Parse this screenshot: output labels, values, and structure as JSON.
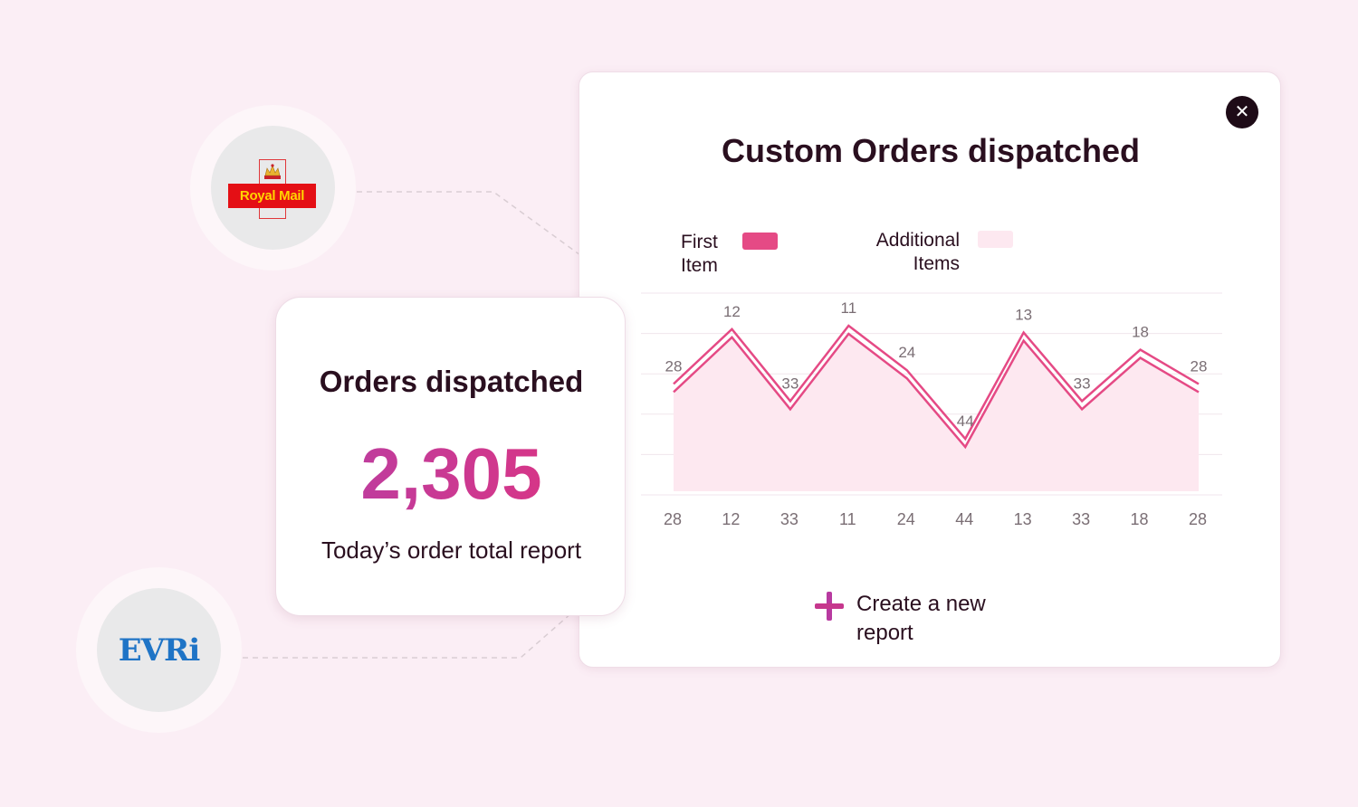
{
  "colors": {
    "background": "#fbeef5",
    "accent_first": "#e54a85",
    "accent_additional": "#fde8f0",
    "gradient_start": "#b53fa6",
    "gradient_end": "#e0337e",
    "dark": "#1e0b17"
  },
  "carriers": [
    {
      "name": "Royal Mail",
      "logo_text": "Royal Mail"
    },
    {
      "name": "EVRi",
      "logo_text": "EVRi"
    }
  ],
  "summary": {
    "title": "Orders dispatched",
    "value": "2,305",
    "caption": "Today’s order total report"
  },
  "report": {
    "title": "Custom Orders dispatched",
    "close_icon": "close-icon",
    "create_label": "Create a new report",
    "create_icon": "plus-icon"
  },
  "chart_data": {
    "type": "area",
    "title": "Custom Orders dispatched",
    "categories": [
      "28",
      "12",
      "33",
      "11",
      "24",
      "44",
      "13",
      "33",
      "18",
      "28"
    ],
    "point_labels": [
      "28",
      "12",
      "33",
      "11",
      "24",
      "44",
      "13",
      "33",
      "18",
      "28"
    ],
    "series": [
      {
        "name": "First Item",
        "values": [
          28,
          12,
          33,
          11,
          24,
          44,
          13,
          33,
          18,
          28
        ],
        "color": "#e54a85",
        "style": "line"
      },
      {
        "name": "Additional Items",
        "values": [
          28,
          12,
          33,
          11,
          24,
          44,
          13,
          33,
          18,
          28
        ],
        "color": "#fde8f0",
        "style": "area"
      }
    ],
    "legend": {
      "first": "First Item",
      "additional": "Additional Items",
      "position": "top"
    },
    "grid": true,
    "ylim": [
      60,
      0
    ]
  }
}
